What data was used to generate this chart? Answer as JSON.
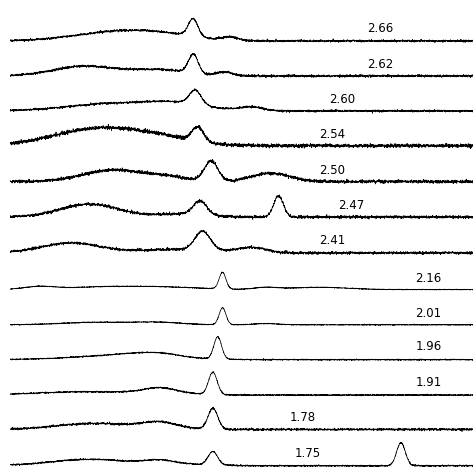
{
  "labels": [
    "2.66",
    "2.62",
    "2.60",
    "2.54",
    "2.50",
    "2.47",
    "2.41",
    "2.16",
    "2.01",
    "1.96",
    "1.91",
    "1.78",
    "1.75"
  ],
  "background_color": "#ffffff",
  "line_color": "#000000",
  "label_fontsize": 8.5,
  "figsize": [
    4.74,
    4.74
  ],
  "dpi": 100
}
